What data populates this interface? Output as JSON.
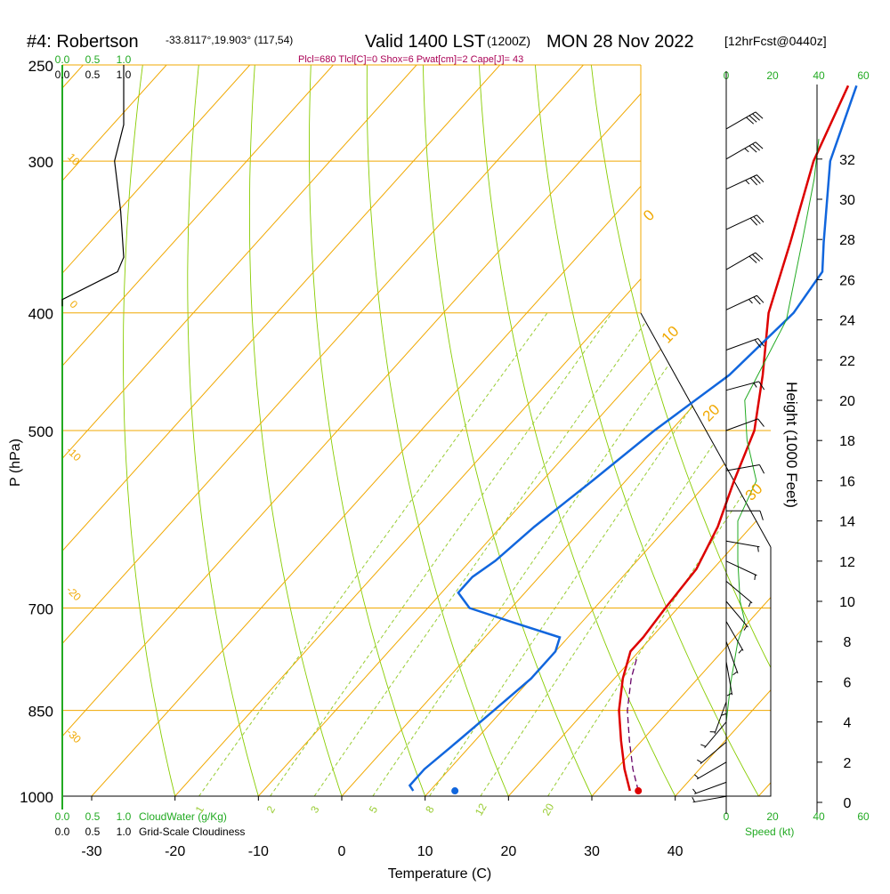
{
  "header": {
    "station": "#4: Robertson",
    "coords": "-33.8117°,19.903° (117,54)",
    "valid": "Valid 1400 LST",
    "zulu": "(1200Z)",
    "date": "MON 28 Nov 2022",
    "forecast": "[12hrFcst@0440z]",
    "indices": "Plcl=680 Tlcl[C]=0 Shox=6 Pwat[cm]=2 Cape[J]= 43"
  },
  "colors": {
    "temperature": "#dd0000",
    "dewpoint": "#1166dd",
    "isotherm": "#f0a800",
    "dry_adiabat": "#88cc00",
    "mixing_ratio": "#99cc33",
    "cloud_scale": "#22aa22",
    "parcel": "#660066",
    "indices": "#aa0055"
  },
  "chart_data": {
    "type": "line",
    "xlabel": "Temperature (C)",
    "ylabel": "P (hPa)",
    "right_axis_label": "Height (1000 Feet)",
    "speed_label": "Speed (kt)",
    "cloud_water_label": "CloudWater (g/Kg)",
    "cloudiness_label": "Grid-Scale Cloudiness",
    "x_ticks": [
      "-30",
      "-20",
      "-10",
      "0",
      "10",
      "20",
      "30",
      "40"
    ],
    "y_ticks": [
      "250",
      "300",
      "400",
      "500",
      "700",
      "850",
      "1000"
    ],
    "height_ticks": [
      "0",
      "2",
      "4",
      "6",
      "8",
      "10",
      "12",
      "14",
      "16",
      "18",
      "20",
      "22",
      "24",
      "26",
      "28",
      "30",
      "32"
    ],
    "cloud_ticks_green": [
      "0.0",
      "0.5",
      "1.0"
    ],
    "cloud_ticks_black": [
      "0.0",
      "0.5",
      "1.0"
    ],
    "speed_ticks": [
      "0",
      "20",
      "40",
      "60"
    ],
    "isotherm_labels": [
      "0",
      "10",
      "20",
      "30",
      "10",
      "0",
      "-10",
      "-20",
      "-30"
    ],
    "mixing_ratio_labels": [
      "1",
      "2",
      "3",
      "5",
      "8",
      "12",
      "20"
    ],
    "series": [
      {
        "name": "temperature",
        "pressure": [
          990,
          950,
          900,
          850,
          800,
          760,
          740,
          700,
          650,
          600,
          550,
          500,
          450,
          400,
          350,
          300,
          260
        ],
        "values": [
          34,
          31,
          27.5,
          24,
          21,
          19,
          19,
          18.5,
          18,
          16,
          13,
          10,
          5,
          -1,
          -6,
          -12,
          -16
        ]
      },
      {
        "name": "dewpoint",
        "pressure": [
          990,
          980,
          950,
          900,
          850,
          800,
          760,
          740,
          720,
          700,
          680,
          660,
          640,
          600,
          550,
          500,
          450,
          400,
          370,
          350,
          300,
          260
        ],
        "values": [
          8,
          7,
          7,
          8,
          9,
          10,
          10,
          9,
          2,
          -5,
          -8,
          -8,
          -7,
          -6,
          -4,
          -2,
          1,
          2,
          1,
          -2,
          -10,
          -15
        ]
      },
      {
        "name": "parcel",
        "pressure": [
          990,
          950,
          900,
          850,
          800,
          770
        ],
        "values": [
          35,
          32,
          28.5,
          25,
          22,
          20.5
        ]
      }
    ],
    "surface_temperature": 35,
    "surface_dewpoint": 13,
    "cloud_water_profile": {
      "pressure": [
        250,
        280,
        300,
        330,
        360,
        370,
        390
      ],
      "values": [
        1.0,
        1.0,
        0.85,
        0.95,
        1.0,
        0.9,
        0.0
      ]
    },
    "wind_speed_profile": {
      "height_kft": [
        0,
        2,
        4,
        6,
        8,
        9,
        10,
        12,
        14,
        16,
        18,
        20,
        24,
        28,
        31,
        33
      ],
      "speed_kt": [
        0,
        0,
        0,
        2,
        5,
        8,
        6,
        5,
        5,
        13,
        9,
        8,
        26,
        33,
        38,
        40
      ]
    },
    "wind_barbs": [
      {
        "height_kft": 0.3,
        "dir": 260,
        "speed": 5
      },
      {
        "height_kft": 1.0,
        "dir": 250,
        "speed": 5
      },
      {
        "height_kft": 2.0,
        "dir": 240,
        "speed": 5
      },
      {
        "height_kft": 3.0,
        "dir": 230,
        "speed": 5
      },
      {
        "height_kft": 4.0,
        "dir": 220,
        "speed": 5
      },
      {
        "height_kft": 5.0,
        "dir": 200,
        "speed": 5
      },
      {
        "height_kft": 6.0,
        "dir": 180,
        "speed": 5
      },
      {
        "height_kft": 7.0,
        "dir": 170,
        "speed": 5
      },
      {
        "height_kft": 8.0,
        "dir": 160,
        "speed": 5
      },
      {
        "height_kft": 9.0,
        "dir": 150,
        "speed": 5
      },
      {
        "height_kft": 10.0,
        "dir": 140,
        "speed": 5
      },
      {
        "height_kft": 11.0,
        "dir": 130,
        "speed": 5
      },
      {
        "height_kft": 12.0,
        "dir": 115,
        "speed": 5
      },
      {
        "height_kft": 13.0,
        "dir": 100,
        "speed": 5
      },
      {
        "height_kft": 14.5,
        "dir": 90,
        "speed": 10
      },
      {
        "height_kft": 16.5,
        "dir": 80,
        "speed": 10
      },
      {
        "height_kft": 18.5,
        "dir": 70,
        "speed": 10
      },
      {
        "height_kft": 20.5,
        "dir": 75,
        "speed": 15
      },
      {
        "height_kft": 22.5,
        "dir": 70,
        "speed": 20
      },
      {
        "height_kft": 24.5,
        "dir": 65,
        "speed": 25
      },
      {
        "height_kft": 26.5,
        "dir": 60,
        "speed": 30
      },
      {
        "height_kft": 28.5,
        "dir": 65,
        "speed": 30
      },
      {
        "height_kft": 30.5,
        "dir": 65,
        "speed": 35
      },
      {
        "height_kft": 32.0,
        "dir": 60,
        "speed": 35
      },
      {
        "height_kft": 33.5,
        "dir": 60,
        "speed": 40
      }
    ]
  }
}
